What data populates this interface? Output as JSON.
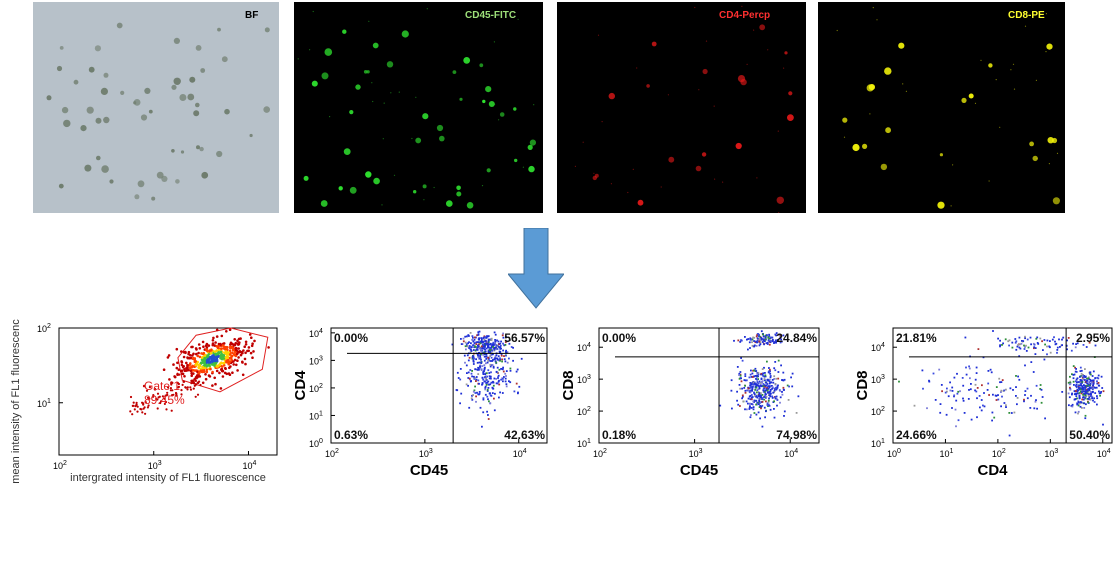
{
  "images": [
    {
      "label": "BF",
      "label_color": "#000000",
      "background": "#b7c1c9",
      "cell_color": "#6f7d6e"
    },
    {
      "label": "CD45-FITC",
      "label_color": "#9ee07a",
      "background": "#000000",
      "cell_color": "#2ee02e"
    },
    {
      "label": "CD4-Percp",
      "label_color": "#ff3030",
      "background": "#000000",
      "cell_color": "#e01818"
    },
    {
      "label": "CD8-PE",
      "label_color": "#ffff30",
      "background": "#000000",
      "cell_color": "#f2f20a"
    }
  ],
  "arrow": {
    "icon": "down-arrow-icon",
    "color": "#5b9bd5"
  },
  "chart_data": [
    {
      "type": "scatter",
      "xlabel": "intergrated intensity of FL1 fluorescence",
      "ylabel": "mean intensity of FL1 fluorescenc",
      "x_scale": "log",
      "y_scale": "log",
      "xlim": [
        100,
        20000
      ],
      "ylim": [
        2,
        100
      ],
      "x_ticks": [
        {
          "base": "10",
          "exp": "2"
        },
        {
          "base": "10",
          "exp": "3"
        },
        {
          "base": "10",
          "exp": "4"
        }
      ],
      "y_ticks": [
        {
          "base": "10",
          "exp": "1"
        },
        {
          "base": "10",
          "exp": "2"
        }
      ],
      "gate_label": "Gate 1",
      "gate_percent": "89.45%",
      "gate_color": "#e02020",
      "gate_polygon": [
        [
          1800,
          40
        ],
        [
          2800,
          80
        ],
        [
          6500,
          100
        ],
        [
          16000,
          75
        ],
        [
          14000,
          28
        ],
        [
          5000,
          14
        ],
        [
          2000,
          20
        ]
      ],
      "cluster": {
        "center": [
          4200,
          38
        ],
        "colors": [
          "#c00000",
          "#ff4000",
          "#ffd000",
          "#40c040",
          "#2050d0"
        ]
      }
    },
    {
      "type": "scatter",
      "xlabel": "CD45",
      "ylabel": "CD4",
      "x_scale": "log",
      "y_scale": "log",
      "xlim": [
        100,
        20000
      ],
      "ylim": [
        1,
        15000
      ],
      "x_ticks": [
        {
          "base": "10",
          "exp": "2"
        },
        {
          "base": "10",
          "exp": "3"
        },
        {
          "base": "10",
          "exp": "4"
        }
      ],
      "y_ticks": [
        {
          "base": "10",
          "exp": "0"
        },
        {
          "base": "10",
          "exp": "1"
        },
        {
          "base": "10",
          "exp": "2"
        },
        {
          "base": "10",
          "exp": "3"
        },
        {
          "base": "10",
          "exp": "4"
        }
      ],
      "gate": [
        2000,
        1800
      ],
      "quadrants": {
        "top_left": "0.00%",
        "top_right": "56.57%",
        "bottom_left": "0.63%",
        "bottom_right": "42.63%"
      },
      "populations": [
        {
          "center": [
            4500,
            3000
          ],
          "spread": [
            0.12,
            0.25
          ],
          "count": 260
        },
        {
          "center": [
            4500,
            300
          ],
          "spread": [
            0.13,
            0.6
          ],
          "count": 260
        }
      ]
    },
    {
      "type": "scatter",
      "xlabel": "CD45",
      "ylabel": "CD8",
      "x_scale": "log",
      "y_scale": "log",
      "xlim": [
        100,
        20000
      ],
      "ylim": [
        10,
        40000
      ],
      "x_ticks": [
        {
          "base": "10",
          "exp": "2"
        },
        {
          "base": "10",
          "exp": "3"
        },
        {
          "base": "10",
          "exp": "4"
        }
      ],
      "y_ticks": [
        {
          "base": "10",
          "exp": "1"
        },
        {
          "base": "10",
          "exp": "2"
        },
        {
          "base": "10",
          "exp": "3"
        },
        {
          "base": "10",
          "exp": "4"
        }
      ],
      "gate": [
        1800,
        5000
      ],
      "quadrants": {
        "top_left": "0.00%",
        "top_right": "24.84%",
        "bottom_left": "0.18%",
        "bottom_right": "74.98%"
      },
      "populations": [
        {
          "center": [
            5000,
            17000
          ],
          "spread": [
            0.12,
            0.1
          ],
          "count": 120
        },
        {
          "center": [
            5000,
            500
          ],
          "spread": [
            0.13,
            0.35
          ],
          "count": 380
        }
      ]
    },
    {
      "type": "scatter",
      "xlabel": "CD4",
      "ylabel": "CD8",
      "x_scale": "log",
      "y_scale": "log",
      "xlim": [
        1,
        15000
      ],
      "ylim": [
        10,
        40000
      ],
      "x_ticks": [
        {
          "base": "10",
          "exp": "0"
        },
        {
          "base": "10",
          "exp": "1"
        },
        {
          "base": "10",
          "exp": "2"
        },
        {
          "base": "10",
          "exp": "3"
        },
        {
          "base": "10",
          "exp": "4"
        }
      ],
      "y_ticks": [
        {
          "base": "10",
          "exp": "1"
        },
        {
          "base": "10",
          "exp": "2"
        },
        {
          "base": "10",
          "exp": "3"
        },
        {
          "base": "10",
          "exp": "4"
        }
      ],
      "gate": [
        2000,
        5000
      ],
      "quadrants": {
        "top_left": "21.81%",
        "top_right": "2.95%",
        "bottom_left": "24.66%",
        "bottom_right": "50.40%"
      },
      "populations": [
        {
          "center": [
            500,
            12000
          ],
          "spread": [
            0.4,
            0.12
          ],
          "count": 90
        },
        {
          "center": [
            4500,
            500
          ],
          "spread": [
            0.14,
            0.3
          ],
          "count": 280
        },
        {
          "center": [
            60,
            400
          ],
          "spread": [
            0.7,
            0.45
          ],
          "count": 140
        }
      ]
    }
  ],
  "dot_colors": [
    "#1e2fd6",
    "#3a4ae0",
    "#7b7bd8",
    "#2f8f3a",
    "#b03030",
    "#9a9a9a"
  ]
}
